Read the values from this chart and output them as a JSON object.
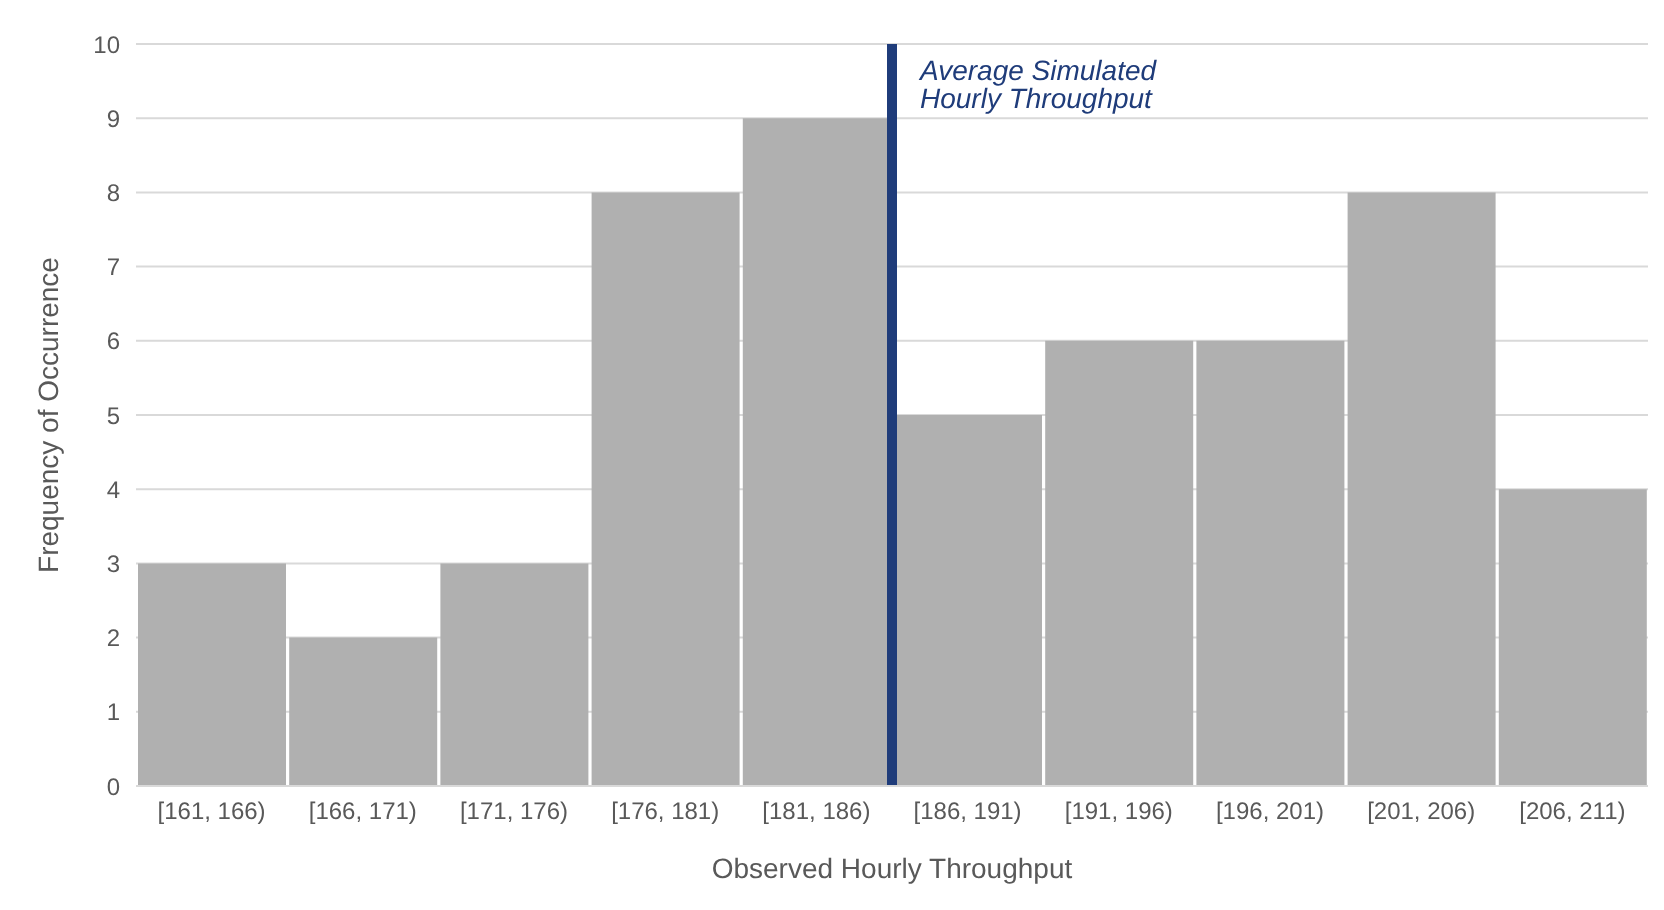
{
  "chart_data": {
    "type": "bar",
    "xlabel": "Observed Hourly Throughput",
    "ylabel": "Frequency of Occurrence",
    "categories": [
      "[161, 166)",
      "[166, 171)",
      "[171, 176)",
      "[176, 181)",
      "[181, 186)",
      "[186, 191)",
      "[191, 196)",
      "[196, 201)",
      "[201, 206)",
      "[206, 211)"
    ],
    "values": [
      3,
      2,
      3,
      8,
      9,
      5,
      6,
      6,
      8,
      4
    ],
    "color": "#b0b0b0",
    "ylim": [
      0,
      10
    ],
    "yticks": [
      0,
      1,
      2,
      3,
      4,
      5,
      6,
      7,
      8,
      9,
      10
    ],
    "grid": "y",
    "ref_lines": [
      {
        "axis": "x",
        "value": "[186, 191)",
        "label": "Average Simulated Hourly Throughput",
        "color": "#1f3c7a"
      }
    ]
  }
}
